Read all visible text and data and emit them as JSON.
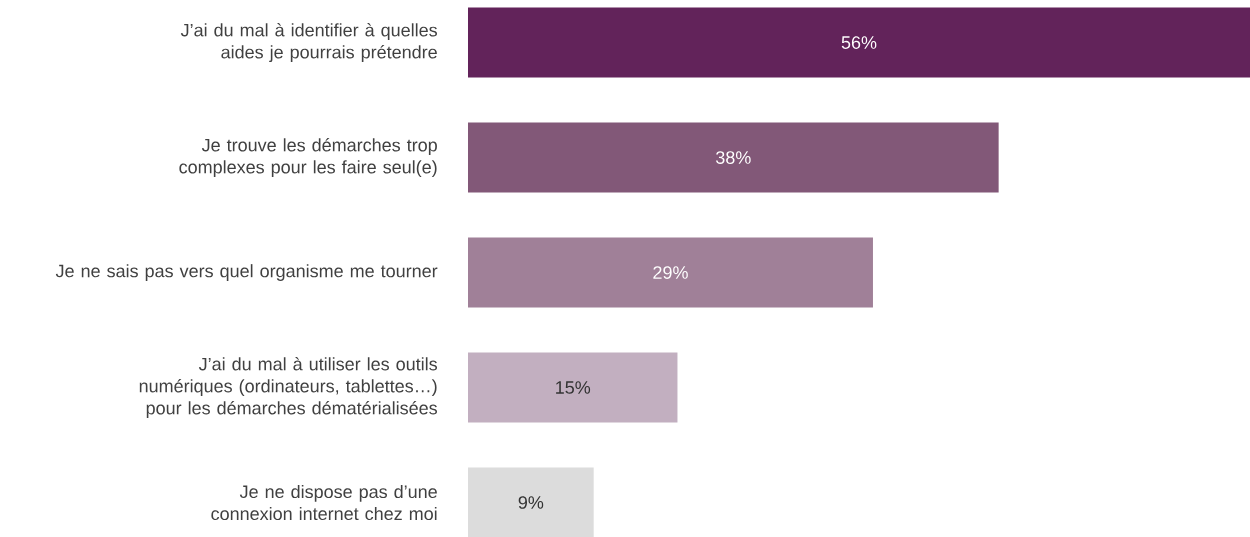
{
  "chart_data": {
    "type": "bar",
    "orientation": "horizontal",
    "categories": [
      "J’ai du mal à identifier à quelles aides je pourrais prétendre",
      "Je trouve les démarches trop complexes pour les faire seul(e)",
      "Je ne sais pas vers quel organisme me tourner",
      "J’ai du mal à utiliser les outils numériques (ordinateurs, tablettes…) pour les démarches dématérialisées",
      "Je ne dispose pas d’une connexion internet chez moi"
    ],
    "values": [
      56,
      38,
      29,
      15,
      9
    ],
    "value_labels": [
      "56%",
      "38%",
      "29%",
      "15%",
      "9%"
    ],
    "colors": [
      "#62235a",
      "#825878",
      "#a08098",
      "#c2afc0",
      "#dcdcdc"
    ]
  }
}
